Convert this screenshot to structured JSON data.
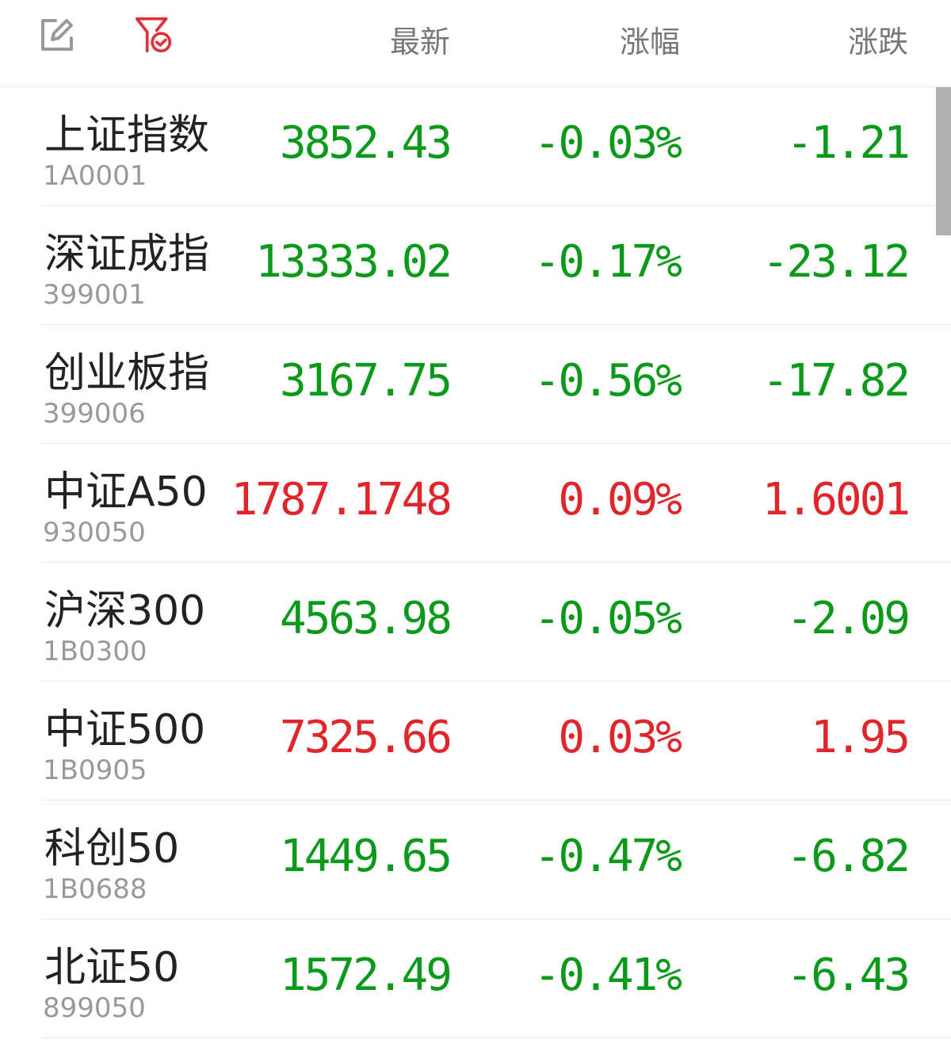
{
  "header": {
    "edit_icon": "edit-icon",
    "filter_icon": "filter-check-icon",
    "col_latest": "最新",
    "col_pct": "涨幅",
    "col_change": "涨跌"
  },
  "colors": {
    "up": "#e0252b",
    "down": "#0a9a1a",
    "accent": "#e0303a"
  },
  "rows": [
    {
      "name": "上证指数",
      "code": "1A0001",
      "latest": "3852.43",
      "pct": "-0.03%",
      "change": "-1.21",
      "dir": "down"
    },
    {
      "name": "深证成指",
      "code": "399001",
      "latest": "13333.02",
      "pct": "-0.17%",
      "change": "-23.12",
      "dir": "down"
    },
    {
      "name": "创业板指",
      "code": "399006",
      "latest": "3167.75",
      "pct": "-0.56%",
      "change": "-17.82",
      "dir": "down"
    },
    {
      "name": "中证A50",
      "code": "930050",
      "latest": "1787.1748",
      "pct": "0.09%",
      "change": "1.6001",
      "dir": "up"
    },
    {
      "name": "沪深300",
      "code": "1B0300",
      "latest": "4563.98",
      "pct": "-0.05%",
      "change": "-2.09",
      "dir": "down"
    },
    {
      "name": "中证500",
      "code": "1B0905",
      "latest": "7325.66",
      "pct": "0.03%",
      "change": "1.95",
      "dir": "up"
    },
    {
      "name": "科创50",
      "code": "1B0688",
      "latest": "1449.65",
      "pct": "-0.47%",
      "change": "-6.82",
      "dir": "down"
    },
    {
      "name": "北证50",
      "code": "899050",
      "latest": "1572.49",
      "pct": "-0.41%",
      "change": "-6.43",
      "dir": "down"
    }
  ]
}
